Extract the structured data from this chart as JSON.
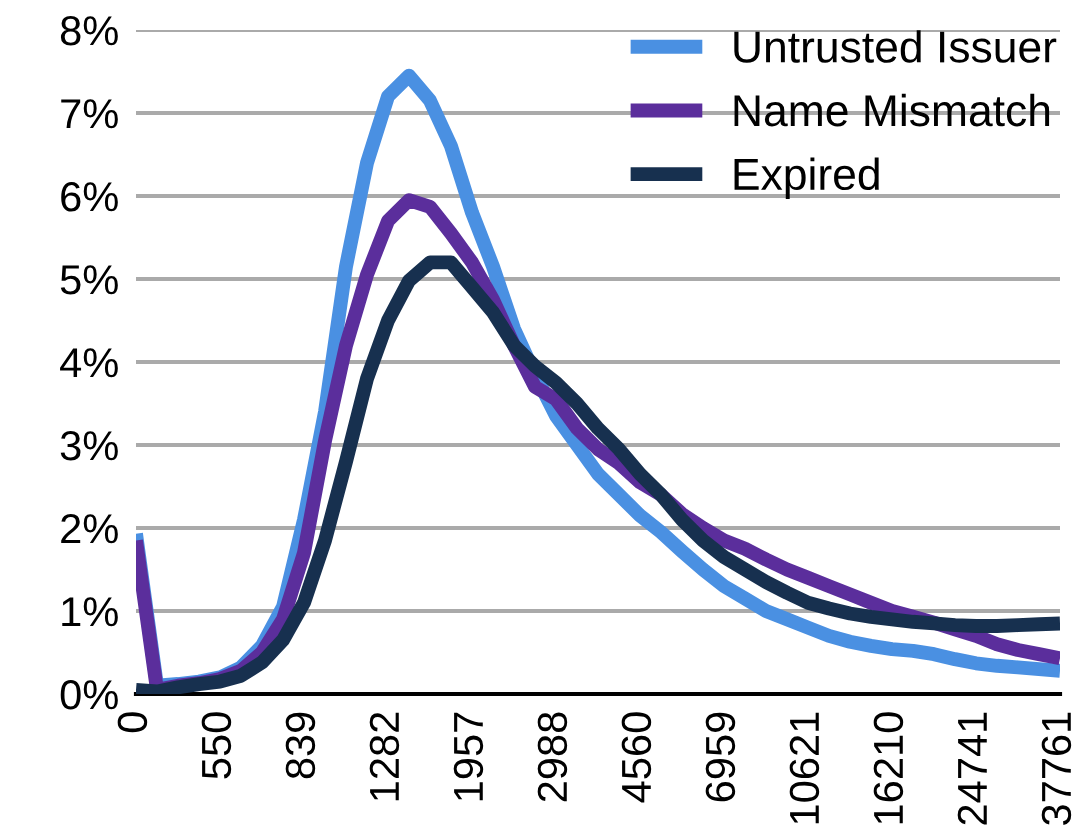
{
  "chart_data": {
    "type": "line",
    "categories": [
      "0",
      null,
      null,
      null,
      "550",
      null,
      null,
      null,
      "839",
      null,
      null,
      null,
      "1282",
      null,
      null,
      null,
      "1957",
      null,
      null,
      null,
      "2988",
      null,
      null,
      null,
      "4560",
      null,
      null,
      null,
      "6959",
      null,
      null,
      null,
      "10621",
      null,
      null,
      null,
      "16210",
      null,
      null,
      null,
      "24741",
      null,
      null,
      null,
      "37761"
    ],
    "series": [
      {
        "name": "Untrusted Issuer",
        "color": "#4a90e2",
        "values": [
          1.93,
          0.1,
          0.12,
          0.15,
          0.2,
          0.32,
          0.58,
          1.05,
          2.1,
          3.4,
          5.15,
          6.4,
          7.2,
          7.45,
          7.15,
          6.6,
          5.8,
          5.15,
          4.4,
          3.85,
          3.35,
          3.0,
          2.65,
          2.4,
          2.15,
          1.95,
          1.72,
          1.5,
          1.3,
          1.15,
          1.0,
          0.9,
          0.8,
          0.7,
          0.63,
          0.58,
          0.54,
          0.52,
          0.48,
          0.42,
          0.37,
          0.34,
          0.32,
          0.3,
          0.28
        ]
      },
      {
        "name": "Name Mismatch",
        "color": "#5b2e9c",
        "values": [
          1.85,
          0.05,
          0.1,
          0.13,
          0.18,
          0.28,
          0.5,
          0.9,
          1.7,
          3.05,
          4.2,
          5.05,
          5.7,
          5.95,
          5.87,
          5.55,
          5.2,
          4.75,
          4.2,
          3.7,
          3.55,
          3.2,
          2.95,
          2.78,
          2.55,
          2.4,
          2.17,
          2.0,
          1.85,
          1.75,
          1.62,
          1.5,
          1.4,
          1.3,
          1.2,
          1.1,
          1.0,
          0.93,
          0.86,
          0.78,
          0.7,
          0.6,
          0.53,
          0.48,
          0.43
        ]
      },
      {
        "name": "Expired",
        "color": "#17304f",
        "values": [
          0.05,
          0.03,
          0.08,
          0.12,
          0.15,
          0.22,
          0.38,
          0.65,
          1.1,
          1.85,
          2.8,
          3.8,
          4.5,
          4.98,
          5.2,
          5.2,
          4.9,
          4.6,
          4.2,
          3.95,
          3.75,
          3.5,
          3.2,
          2.95,
          2.65,
          2.4,
          2.1,
          1.85,
          1.65,
          1.5,
          1.35,
          1.22,
          1.1,
          1.03,
          0.97,
          0.93,
          0.9,
          0.87,
          0.85,
          0.83,
          0.82,
          0.82,
          0.83,
          0.84,
          0.85
        ]
      }
    ],
    "ylim": [
      0,
      8
    ],
    "yticks": [
      {
        "value": 0,
        "label": "0%"
      },
      {
        "value": 1,
        "label": "1%"
      },
      {
        "value": 2,
        "label": "2%"
      },
      {
        "value": 3,
        "label": "3%"
      },
      {
        "value": 4,
        "label": "4%"
      },
      {
        "value": 5,
        "label": "5%"
      },
      {
        "value": 6,
        "label": "6%"
      },
      {
        "value": 7,
        "label": "7%"
      },
      {
        "value": 8,
        "label": "8%"
      }
    ],
    "grid": "y",
    "legend": "top right",
    "marker": "none",
    "line_style": "solid"
  }
}
